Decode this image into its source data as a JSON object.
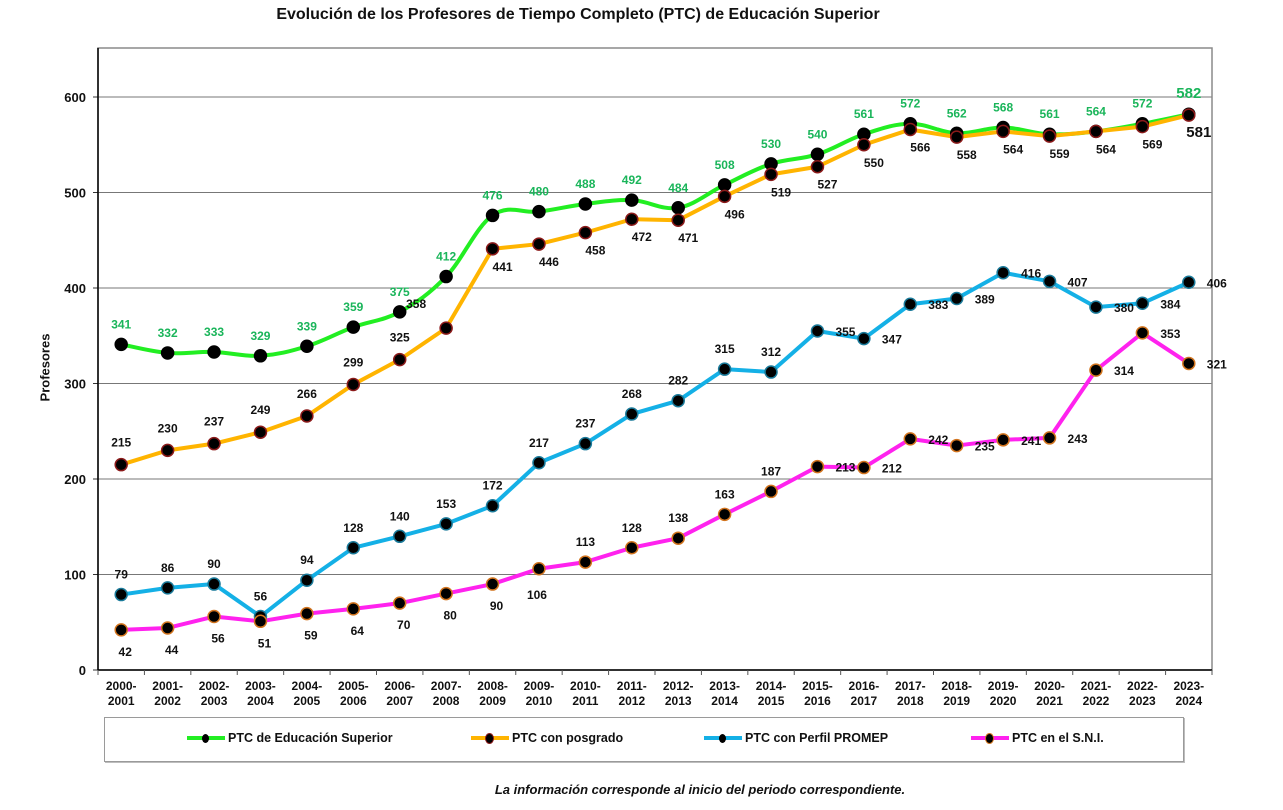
{
  "chart_data": {
    "type": "line",
    "title": "Evolución de los Profesores de Tiempo Completo (PTC) de Educación Superior",
    "xlabel": "",
    "ylabel": "Profesores",
    "ylim": [
      0,
      650
    ],
    "yticks": [
      0,
      100,
      200,
      300,
      400,
      500,
      600
    ],
    "grid": true,
    "legend_position": "bottom",
    "categories": [
      [
        "2000-",
        "2001"
      ],
      [
        "2001-",
        "2002"
      ],
      [
        "2002-",
        "2003"
      ],
      [
        "2003-",
        "2004"
      ],
      [
        "2004-",
        "2005"
      ],
      [
        "2005-",
        "2006"
      ],
      [
        "2006-",
        "2007"
      ],
      [
        "2007-",
        "2008"
      ],
      [
        "2008-",
        "2009"
      ],
      [
        "2009-",
        "2010"
      ],
      [
        "2010-",
        "2011"
      ],
      [
        "2011-",
        "2012"
      ],
      [
        "2012-",
        "2013"
      ],
      [
        "2013-",
        "2014"
      ],
      [
        "2014-",
        "2015"
      ],
      [
        "2015-",
        "2016"
      ],
      [
        "2016-",
        "2017"
      ],
      [
        "2017-",
        "2018"
      ],
      [
        "2018-",
        "2019"
      ],
      [
        "2019-",
        "2020"
      ],
      [
        "2020-",
        "2021"
      ],
      [
        "2021-",
        "2022"
      ],
      [
        "2022-",
        "2023"
      ],
      [
        "2023-",
        "2024"
      ]
    ],
    "series": [
      {
        "name": "PTC de Educación Superior",
        "color": "#22ee22",
        "label_color": "#1ab55a",
        "marker_edge": "#000000",
        "smooth": true,
        "values": [
          341,
          332,
          333,
          329,
          339,
          359,
          375,
          412,
          476,
          480,
          488,
          492,
          484,
          508,
          530,
          540,
          561,
          572,
          562,
          568,
          561,
          564,
          572,
          582
        ]
      },
      {
        "name": "PTC con posgrado",
        "color": "#ffb400",
        "label_color": "#111111",
        "marker_edge": "#8b1a1a",
        "smooth": false,
        "values": [
          215,
          230,
          237,
          249,
          266,
          299,
          325,
          358,
          441,
          446,
          458,
          472,
          471,
          496,
          519,
          527,
          550,
          566,
          558,
          564,
          559,
          564,
          569,
          581
        ]
      },
      {
        "name": "PTC con Perfil PROMEP",
        "color": "#14b0e6",
        "label_color": "#111111",
        "marker_edge": "#1a7a9a",
        "smooth": false,
        "values": [
          79,
          86,
          90,
          56,
          94,
          128,
          140,
          153,
          172,
          217,
          237,
          268,
          282,
          315,
          312,
          355,
          347,
          383,
          389,
          416,
          407,
          380,
          384,
          406
        ]
      },
      {
        "name": "PTC en el S.N.I.",
        "color": "#ff22ee",
        "label_color": "#111111",
        "marker_edge": "#d2741e",
        "smooth": false,
        "values": [
          42,
          44,
          56,
          51,
          59,
          64,
          70,
          80,
          90,
          106,
          113,
          128,
          138,
          163,
          187,
          213,
          212,
          242,
          235,
          241,
          243,
          314,
          353,
          321
        ]
      }
    ],
    "footnote": "La información corresponde al inicio del periodo correspondiente."
  }
}
